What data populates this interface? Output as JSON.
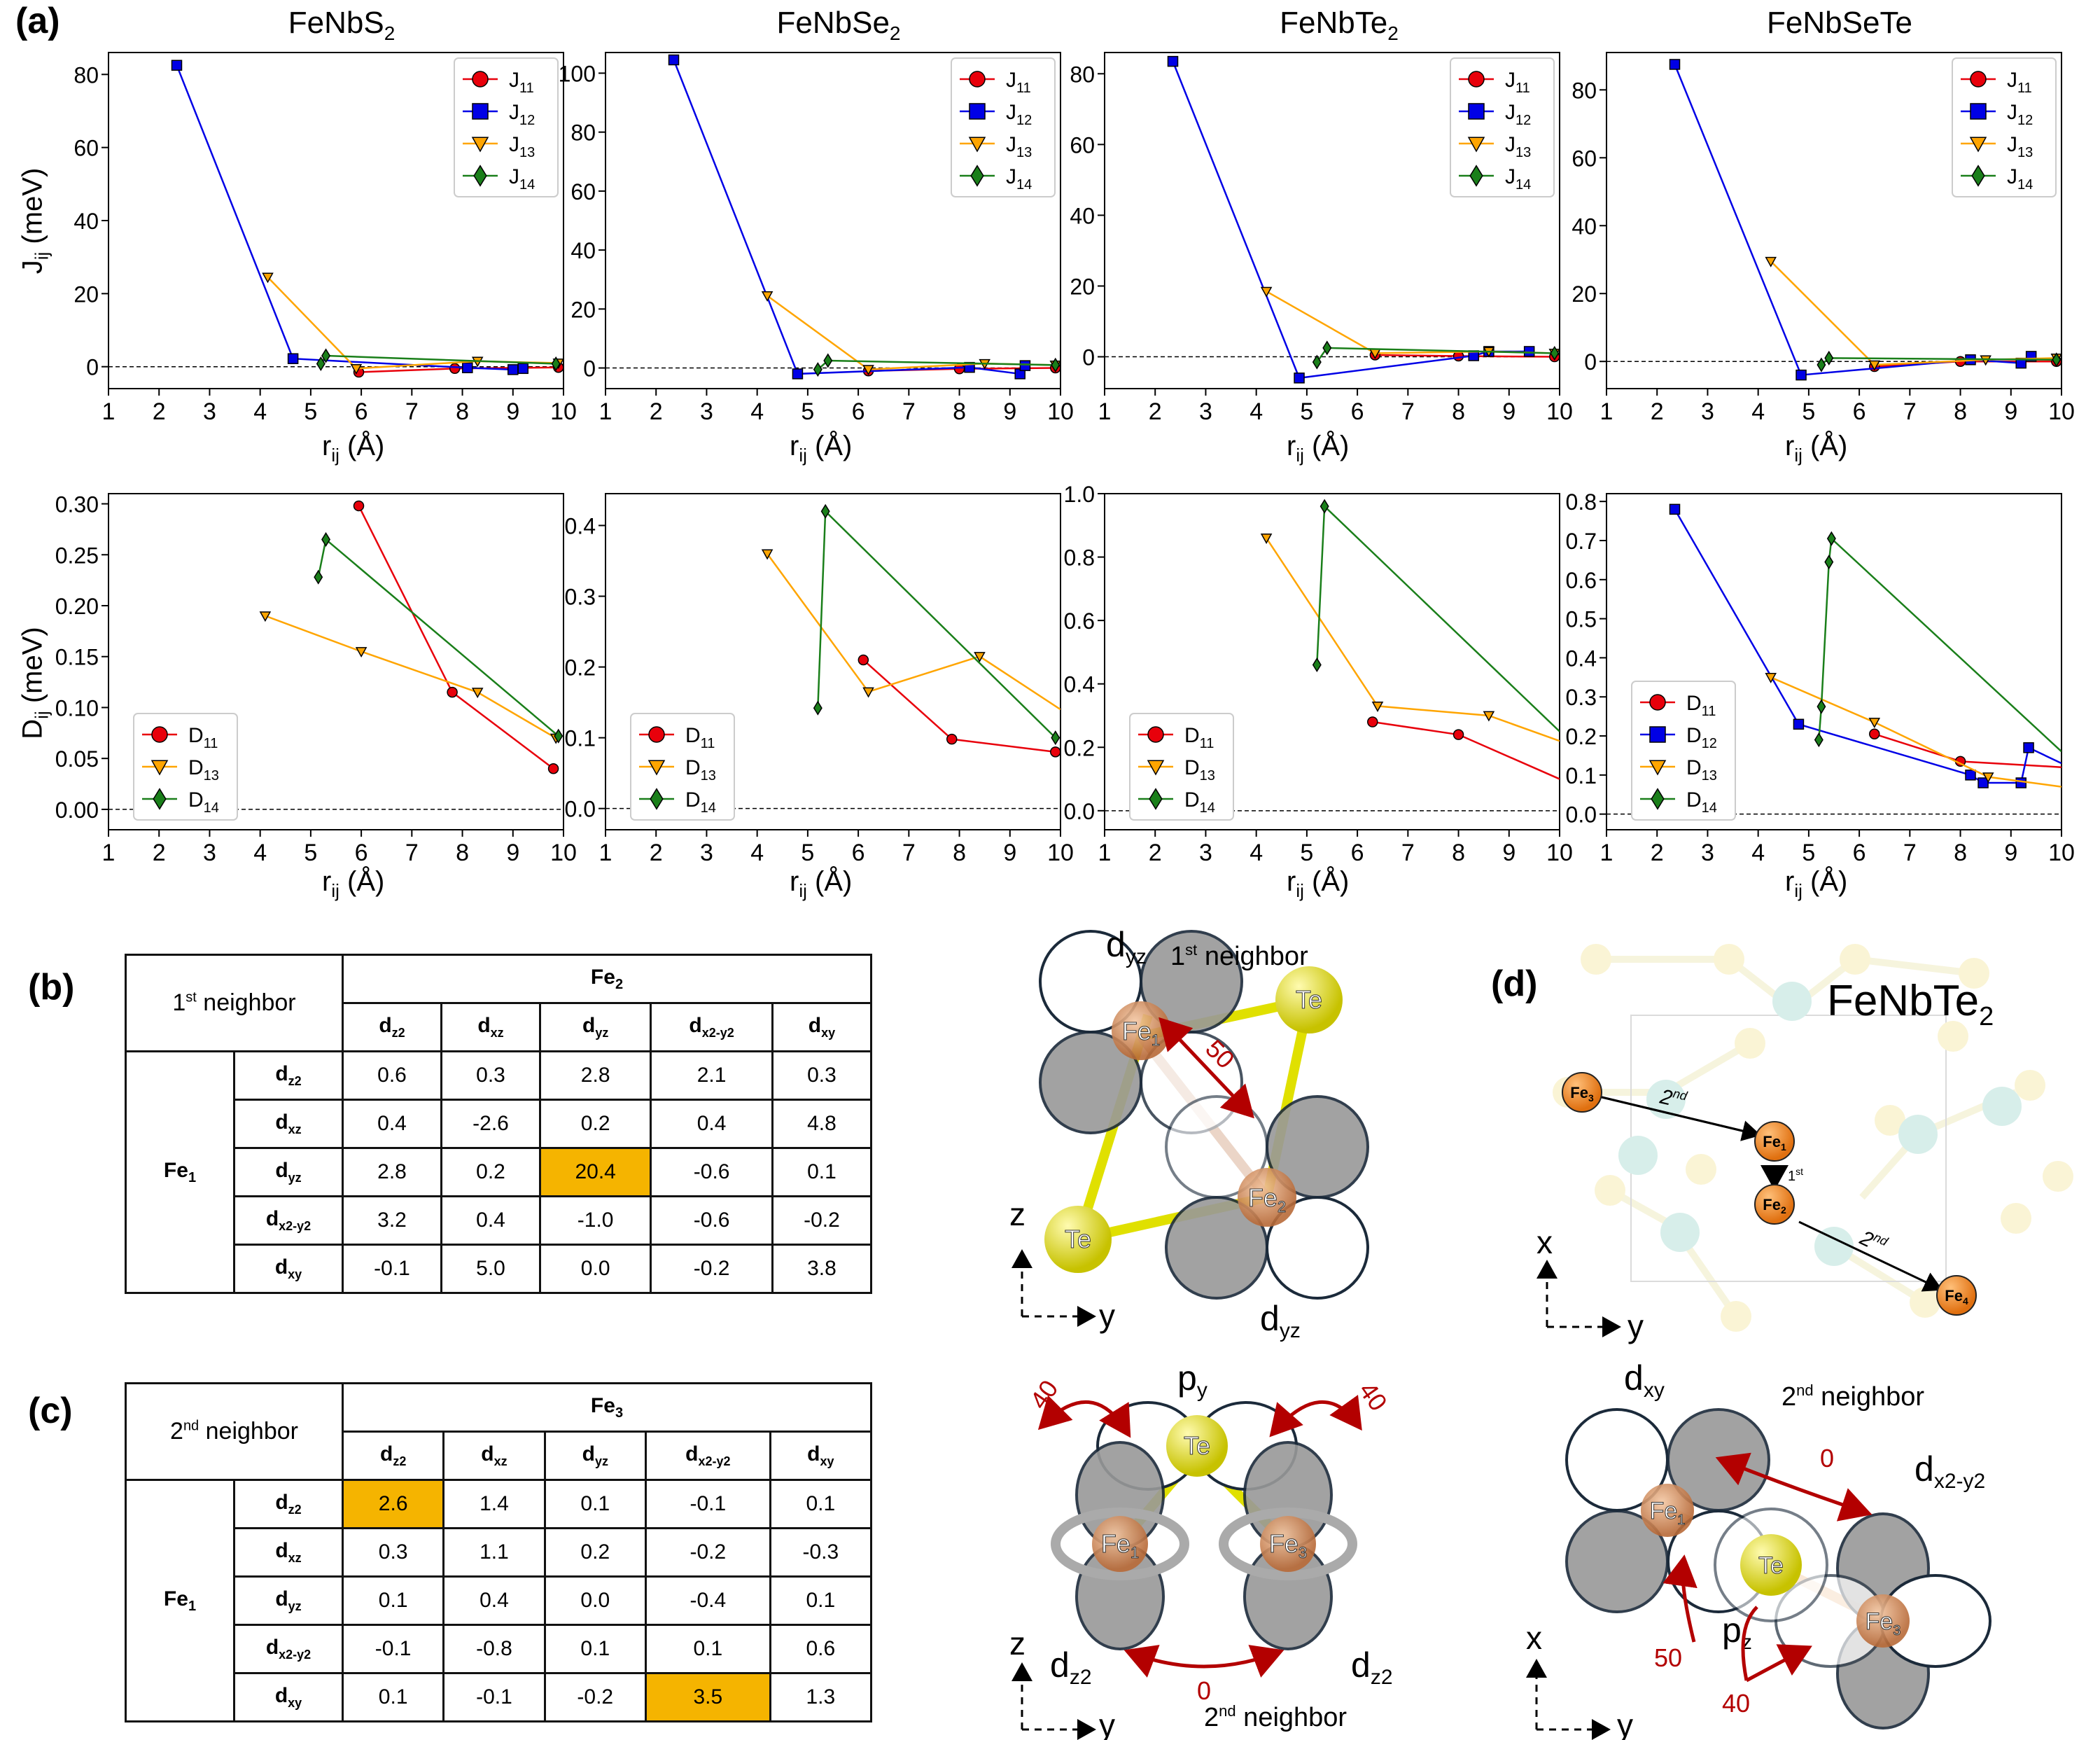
{
  "panels": {
    "a": "(a)",
    "b": "(b)",
    "c": "(c)",
    "d": "(d)"
  },
  "plots": [
    {
      "title": "FeNbS",
      "title_sub": "2"
    },
    {
      "title": "FeNbSe",
      "title_sub": "2"
    },
    {
      "title": "FeNbTe",
      "title_sub": "2"
    },
    {
      "title": "FeNbSeTe",
      "title_sub": ""
    }
  ],
  "axis_labels": {
    "j_ylabel": "J",
    "j_ysub": "ij",
    "j_yunit": " (meV)",
    "d_ylabel": "D",
    "d_ysub": "ij",
    "d_yunit": " (meV)",
    "xlabel": "r",
    "xsub": "ij",
    "xunit": " (Å)"
  },
  "colors": {
    "J11": "#e8000b",
    "J12": "#0000e6",
    "J13": "#ffa500",
    "J14": "#1a7f1a"
  },
  "chart_data": [
    {
      "type": "line",
      "title": "FeNbS2",
      "ylabel": "Jij (meV)",
      "xlabel": "rij (Å)",
      "xlim": [
        1,
        10
      ],
      "ylim": [
        -6,
        86
      ],
      "yticks": [
        0,
        20,
        40,
        60,
        80
      ],
      "series": [
        {
          "name": "J11",
          "marker": "circle",
          "x": [
            5.95,
            7.85,
            9.9
          ],
          "y": [
            -1.5,
            -0.5,
            -0.2
          ]
        },
        {
          "name": "J12",
          "marker": "square",
          "x": [
            2.35,
            4.65,
            8.1,
            9.0,
            9.2
          ],
          "y": [
            82.5,
            2.2,
            -0.3,
            -0.8,
            -0.5
          ]
        },
        {
          "name": "J13",
          "marker": "triangle",
          "x": [
            4.15,
            5.9,
            8.3,
            9.9
          ],
          "y": [
            24.5,
            -0.5,
            1.5,
            1.0
          ]
        },
        {
          "name": "J14",
          "marker": "diamond",
          "x": [
            5.2,
            5.3,
            9.85
          ],
          "y": [
            0.8,
            3.0,
            0.8
          ]
        }
      ],
      "legend": [
        "J11",
        "J12",
        "J13",
        "J14"
      ]
    },
    {
      "type": "line",
      "title": "FeNbSe2",
      "ylabel": "Jij (meV)",
      "xlabel": "rij (Å)",
      "xlim": [
        1,
        10
      ],
      "ylim": [
        -7,
        107
      ],
      "yticks": [
        0,
        20,
        40,
        60,
        80,
        100
      ],
      "series": [
        {
          "name": "J11",
          "marker": "circle",
          "x": [
            6.2,
            8.0,
            9.9
          ],
          "y": [
            -1.0,
            -0.3,
            0.0
          ]
        },
        {
          "name": "J12",
          "marker": "square",
          "x": [
            2.35,
            4.8,
            8.2,
            9.2,
            9.3
          ],
          "y": [
            104.5,
            -2.0,
            0.2,
            -2.0,
            0.8
          ]
        },
        {
          "name": "J13",
          "marker": "triangle",
          "x": [
            4.2,
            6.2,
            8.5,
            9.9
          ],
          "y": [
            24.5,
            -0.5,
            1.5,
            1.0
          ]
        },
        {
          "name": "J14",
          "marker": "diamond",
          "x": [
            5.2,
            5.4,
            9.9
          ],
          "y": [
            -0.5,
            2.5,
            1.0
          ]
        }
      ],
      "legend": [
        "J11",
        "J12",
        "J13",
        "J14"
      ]
    },
    {
      "type": "line",
      "title": "FeNbTe2",
      "ylabel": "Jij (meV)",
      "xlabel": "rij (Å)",
      "xlim": [
        1,
        10
      ],
      "ylim": [
        -9,
        86
      ],
      "yticks": [
        0,
        20,
        40,
        60,
        80
      ],
      "series": [
        {
          "name": "J11",
          "marker": "circle",
          "x": [
            6.35,
            8.0,
            9.9
          ],
          "y": [
            0.5,
            0.2,
            0.0
          ]
        },
        {
          "name": "J12",
          "marker": "square",
          "x": [
            2.35,
            4.85,
            8.3,
            8.6,
            9.4
          ],
          "y": [
            83.5,
            -6.0,
            0.3,
            1.5,
            1.5
          ]
        },
        {
          "name": "J13",
          "marker": "triangle",
          "x": [
            4.2,
            6.35,
            8.6,
            9.9
          ],
          "y": [
            18.5,
            1.0,
            1.5,
            1.0
          ]
        },
        {
          "name": "J14",
          "marker": "diamond",
          "x": [
            5.2,
            5.4,
            9.9
          ],
          "y": [
            -1.5,
            2.5,
            1.0
          ]
        }
      ],
      "legend": [
        "J11",
        "J12",
        "J13",
        "J14"
      ]
    },
    {
      "type": "line",
      "title": "FeNbSeTe",
      "ylabel": "Jij (meV)",
      "xlabel": "rij (Å)",
      "xlim": [
        1,
        10
      ],
      "ylim": [
        -8,
        91
      ],
      "yticks": [
        0,
        20,
        40,
        60,
        80
      ],
      "series": [
        {
          "name": "J11",
          "marker": "circle",
          "x": [
            6.3,
            8.0,
            9.9
          ],
          "y": [
            -1.5,
            0.0,
            0.0
          ]
        },
        {
          "name": "J12",
          "marker": "square",
          "x": [
            2.35,
            4.85,
            8.2,
            9.2,
            9.4
          ],
          "y": [
            87.5,
            -4.0,
            0.5,
            -0.5,
            1.5
          ]
        },
        {
          "name": "J13",
          "marker": "triangle",
          "x": [
            4.25,
            6.3,
            8.5,
            9.9
          ],
          "y": [
            29.5,
            -1.0,
            0.5,
            1.0
          ]
        },
        {
          "name": "J14",
          "marker": "diamond",
          "x": [
            5.25,
            5.4,
            9.9
          ],
          "y": [
            -1.0,
            1.0,
            0.5
          ]
        }
      ],
      "legend": [
        "J11",
        "J12",
        "J13",
        "J14"
      ]
    },
    {
      "type": "line",
      "title": "FeNbS2",
      "ylabel": "Dij (meV)",
      "xlabel": "rij (Å)",
      "xlim": [
        1,
        10
      ],
      "ylim": [
        -0.02,
        0.31
      ],
      "yticks": [
        0.0,
        0.05,
        0.1,
        0.15,
        0.2,
        0.25,
        0.3
      ],
      "ytickfmt": 2,
      "series": [
        {
          "name": "D11",
          "marker": "circle",
          "x": [
            5.95,
            7.8,
            9.8
          ],
          "y": [
            0.298,
            0.115,
            0.04
          ]
        },
        {
          "name": "D13",
          "marker": "triangle",
          "x": [
            4.1,
            6.0,
            8.3,
            9.85
          ],
          "y": [
            0.19,
            0.155,
            0.115,
            0.07
          ]
        },
        {
          "name": "D14",
          "marker": "diamond",
          "x": [
            5.15,
            5.3,
            9.9
          ],
          "y": [
            0.228,
            0.265,
            0.072
          ]
        }
      ],
      "legend": [
        "D11",
        "D13",
        "D14"
      ]
    },
    {
      "type": "line",
      "title": "FeNbSe2",
      "ylabel": "Dij (meV)",
      "xlabel": "rij (Å)",
      "xlim": [
        1,
        10
      ],
      "ylim": [
        -0.03,
        0.445
      ],
      "yticks": [
        0.0,
        0.1,
        0.2,
        0.3,
        0.4
      ],
      "ytickfmt": 1,
      "series": [
        {
          "name": "D11",
          "marker": "circle",
          "x": [
            6.1,
            7.85,
            9.9
          ],
          "y": [
            0.21,
            0.098,
            0.08
          ]
        },
        {
          "name": "D13",
          "marker": "triangle",
          "x": [
            4.2,
            6.2,
            8.4,
            10.0
          ],
          "y": [
            0.36,
            0.165,
            0.215,
            0.14
          ]
        },
        {
          "name": "D14",
          "marker": "diamond",
          "x": [
            5.2,
            5.35,
            9.9
          ],
          "y": [
            0.142,
            0.42,
            0.1
          ]
        }
      ],
      "legend": [
        "D11",
        "D13",
        "D14"
      ]
    },
    {
      "type": "line",
      "title": "FeNbTe2",
      "ylabel": "Dij (meV)",
      "xlabel": "rij (Å)",
      "xlim": [
        1,
        10
      ],
      "ylim": [
        -0.06,
        1.0
      ],
      "yticks": [
        0.0,
        0.2,
        0.4,
        0.6,
        0.8,
        1.0
      ],
      "ytickfmt": 1,
      "series": [
        {
          "name": "D11",
          "marker": "circle",
          "x": [
            6.3,
            8.0,
            10.0
          ],
          "y": [
            0.28,
            0.24,
            0.1
          ]
        },
        {
          "name": "D13",
          "marker": "triangle",
          "x": [
            4.2,
            6.4,
            8.6,
            10.0
          ],
          "y": [
            0.86,
            0.33,
            0.3,
            0.22
          ]
        },
        {
          "name": "D14",
          "marker": "diamond",
          "x": [
            5.2,
            5.35,
            10.0
          ],
          "y": [
            0.46,
            0.96,
            0.25
          ]
        }
      ],
      "legend": [
        "D11",
        "D13",
        "D14"
      ]
    },
    {
      "type": "line",
      "title": "FeNbSeTe",
      "ylabel": "Dij (meV)",
      "xlabel": "rij (Å)",
      "xlim": [
        1,
        10
      ],
      "ylim": [
        -0.04,
        0.82
      ],
      "yticks": [
        0.0,
        0.1,
        0.2,
        0.3,
        0.4,
        0.5,
        0.6,
        0.7,
        0.8
      ],
      "ytickfmt": 1,
      "series": [
        {
          "name": "D11",
          "marker": "circle",
          "x": [
            6.3,
            8.0,
            10.0
          ],
          "y": [
            0.205,
            0.135,
            0.12
          ]
        },
        {
          "name": "D12",
          "marker": "square",
          "x": [
            2.35,
            4.8,
            8.2,
            8.45,
            9.2,
            9.35,
            10.0
          ],
          "y": [
            0.78,
            0.23,
            0.1,
            0.08,
            0.08,
            0.17,
            0.13
          ]
        },
        {
          "name": "D13",
          "marker": "triangle",
          "x": [
            4.25,
            6.3,
            8.55,
            10.0
          ],
          "y": [
            0.35,
            0.235,
            0.095,
            0.07
          ]
        },
        {
          "name": "D14",
          "marker": "diamond",
          "x": [
            5.2,
            5.25,
            5.4,
            5.45,
            10.0
          ],
          "y": [
            0.19,
            0.275,
            0.645,
            0.705,
            0.16
          ]
        }
      ],
      "legend": [
        "D11",
        "D12",
        "D13",
        "D14"
      ]
    }
  ],
  "table_b": {
    "corner": "1",
    "corner_sup": "st",
    "corner_rest": " neighbor",
    "col_group": "Fe",
    "col_group_sub": "2",
    "row_group": "Fe",
    "row_group_sub": "1",
    "orbitals": [
      [
        "d",
        "z2"
      ],
      [
        "d",
        "xz"
      ],
      [
        "d",
        "yz"
      ],
      [
        "d",
        "x2-y2"
      ],
      [
        "d",
        "xy"
      ]
    ],
    "rows": [
      [
        "0.6",
        "0.3",
        "2.8",
        "2.1",
        "0.3"
      ],
      [
        "0.4",
        "-2.6",
        "0.2",
        "0.4",
        "4.8"
      ],
      [
        "2.8",
        "0.2",
        "20.4",
        "-0.6",
        "0.1"
      ],
      [
        "3.2",
        "0.4",
        "-1.0",
        "-0.6",
        "-0.2"
      ],
      [
        "-0.1",
        "5.0",
        "0.0",
        "-0.2",
        "3.8"
      ]
    ],
    "highlight": [
      [
        2,
        2
      ]
    ]
  },
  "table_c": {
    "corner": "2",
    "corner_sup": "nd",
    "corner_rest": " neighbor",
    "col_group": "Fe",
    "col_group_sub": "3",
    "row_group": "Fe",
    "row_group_sub": "1",
    "orbitals": [
      [
        "d",
        "z2"
      ],
      [
        "d",
        "xz"
      ],
      [
        "d",
        "yz"
      ],
      [
        "d",
        "x2-y2"
      ],
      [
        "d",
        "xy"
      ]
    ],
    "rows": [
      [
        "2.6",
        "1.4",
        "0.1",
        "-0.1",
        "0.1"
      ],
      [
        "0.3",
        "1.1",
        "0.2",
        "-0.2",
        "-0.3"
      ],
      [
        "0.1",
        "0.4",
        "0.0",
        "-0.4",
        "0.1"
      ],
      [
        "-0.1",
        "-0.8",
        "0.1",
        "0.1",
        "0.6"
      ],
      [
        "0.1",
        "-0.1",
        "-0.2",
        "3.5",
        "1.3"
      ]
    ],
    "highlight": [
      [
        0,
        0
      ],
      [
        4,
        3
      ]
    ]
  },
  "diagram_b": {
    "title": "1",
    "title_sup": "st",
    "title_rest": " neighbor",
    "orb_top": "d",
    "orb_top_sub": "yz",
    "orb_bot": "d",
    "orb_bot_sub": "yz",
    "fe1": "Fe",
    "fe1_sub": "1",
    "fe2": "Fe",
    "fe2_sub": "2",
    "te": "Te",
    "hop": "50",
    "axis_v": "z",
    "axis_h": "y"
  },
  "diagram_c": {
    "orb_top": "p",
    "orb_top_sub": "y",
    "te": "Te",
    "fe1": "Fe",
    "fe1_sub": "1",
    "fe3": "Fe",
    "fe3_sub": "3",
    "orb_left": "d",
    "orb_left_sub": "z2",
    "orb_right": "d",
    "orb_right_sub": "z2",
    "hop_left": "40",
    "hop_right": "40",
    "hop_bottom": "0",
    "caption": "2",
    "caption_sup": "nd",
    "caption_rest": " neighbor",
    "axis_v": "z",
    "axis_h": "y"
  },
  "diagram_d_top": {
    "title": "FeNbTe",
    "title_sub": "2",
    "fe1": "Fe",
    "fe1_sub": "1",
    "fe2": "Fe",
    "fe2_sub": "2",
    "fe3": "Fe",
    "fe3_sub": "3",
    "fe4": "Fe",
    "fe4_sub": "4",
    "first": "1",
    "first_sup": "st",
    "second": "2",
    "second_sup": "nd",
    "axis_v": "x",
    "axis_h": "y"
  },
  "diagram_d_bot": {
    "title": "2",
    "title_sup": "nd",
    "title_rest": " neighbor",
    "orb_tl": "d",
    "orb_tl_sub": "xy",
    "orb_tr": "d",
    "orb_tr_sub": "x2-y2",
    "orb_te": "p",
    "orb_te_sub": "z",
    "te": "Te",
    "fe1": "Fe",
    "fe1_sub": "1",
    "fe3": "Fe",
    "fe3_sub": "3",
    "hop_top": "0",
    "hop_left": "50",
    "hop_bottom": "40",
    "axis_v": "x",
    "axis_h": "y"
  }
}
